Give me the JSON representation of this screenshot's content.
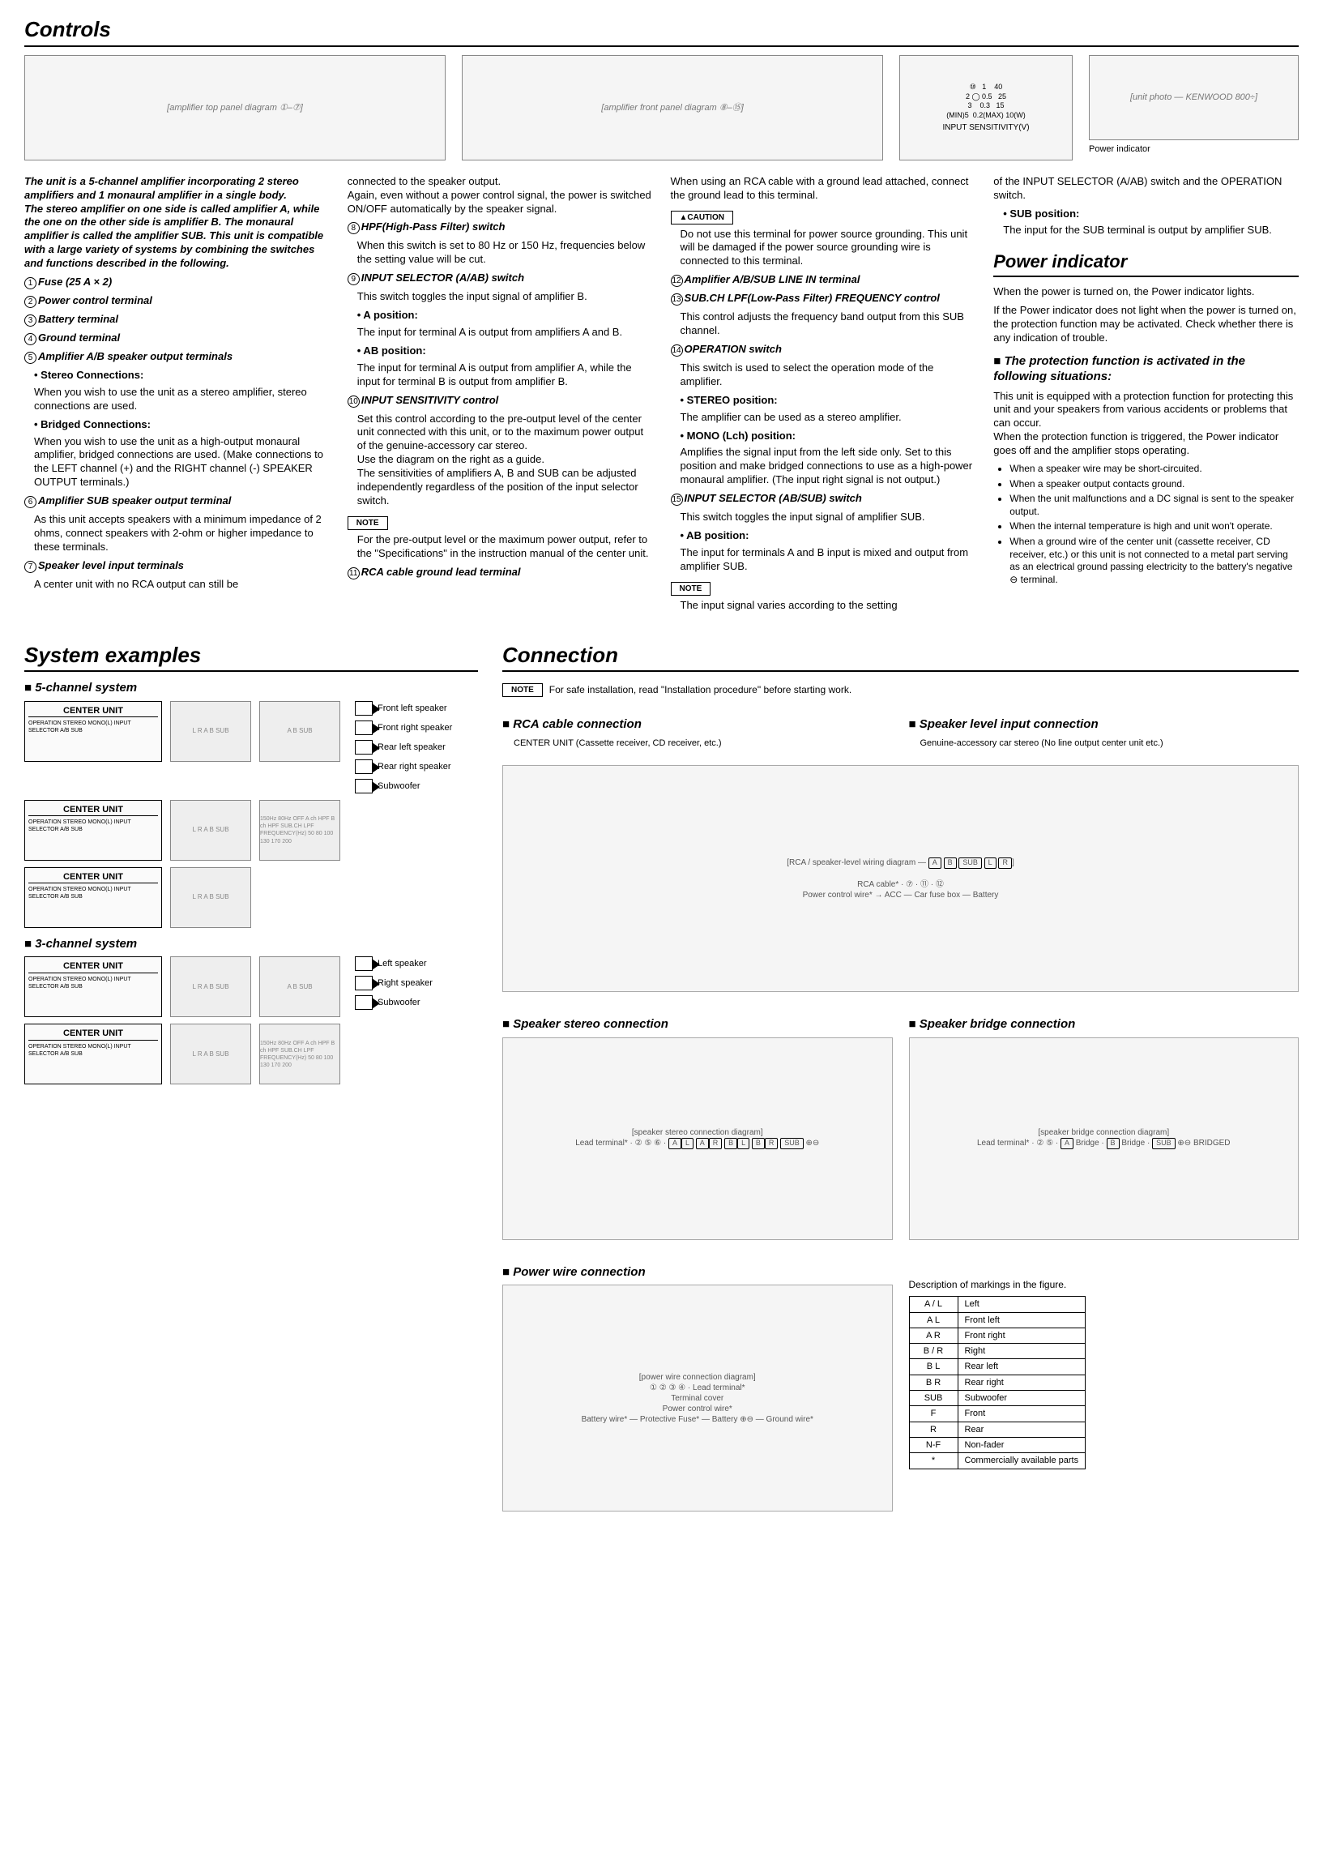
{
  "controls": {
    "title": "Controls",
    "intro": "The unit is a 5-channel amplifier incorporating 2 stereo amplifiers and 1 monaural amplifier in a single body.\nThe stereo amplifier on one side is called amplifier A, while the one on the other side is amplifier B. The monaural amplifier is called the amplifier SUB. This unit is compatible with a large variety of systems by combining the switches and functions described in the following.",
    "items": {
      "1": "Fuse (25 A × 2)",
      "2": "Power control terminal",
      "3": "Battery terminal",
      "4": "Ground terminal",
      "5": "Amplifier A/B speaker output terminals",
      "5_stereo_h": "• Stereo Connections:",
      "5_stereo": "When you wish to use the unit as a stereo amplifier, stereo connections are used.",
      "5_bridged_h": "• Bridged Connections:",
      "5_bridged": "When you wish to use the unit as a high-output monaural amplifier, bridged connections are used. (Make connections to the LEFT channel (+) and the RIGHT channel (-) SPEAKER OUTPUT terminals.)",
      "6": "Amplifier SUB speaker output terminal",
      "6_desc": "As this unit accepts speakers with a minimum impedance of 2 ohms, connect speakers with 2-ohm or higher impedance to these terminals.",
      "7": "Speaker level input terminals",
      "7_desc": "A center unit with no RCA output can still be",
      "7_cont": "connected to the speaker output.\nAgain, even without a power control signal, the power is switched ON/OFF automatically by the speaker signal.",
      "8": "HPF(High-Pass Filter) switch",
      "8_desc": "When this switch is set to 80 Hz or 150 Hz, frequencies below the setting value will be cut.",
      "9": "INPUT SELECTOR (A/AB) switch",
      "9_desc": "This switch toggles the input signal of amplifier B.",
      "9_a_h": "• A position:",
      "9_a": "The input for terminal A is output from amplifiers A and B.",
      "9_ab_h": "• AB position:",
      "9_ab": "The input for terminal A is output from amplifier A, while the input for terminal B is output from amplifier B.",
      "10": "INPUT SENSITIVITY control",
      "10_desc": "Set this control according to the pre-output level of the center unit connected with this unit, or to the maximum power output of the genuine-accessory car stereo.\nUse the diagram on the right as a guide.\nThe sensitivities of amplifiers A, B and SUB can be adjusted independently regardless of the position of the input selector switch.",
      "note_label": "NOTE",
      "10_note": "For the pre-output level or the maximum power output, refer to the \"Specifications\" in the instruction manual of the center unit.",
      "11": "RCA cable ground lead terminal",
      "11_desc": "When using an RCA cable with a ground lead attached, connect the ground lead to this terminal.",
      "caution_label": "▲CAUTION",
      "11_caution": "Do not use this terminal for power source grounding. This unit will be damaged if the power source grounding wire is connected to this terminal.",
      "12": "Amplifier A/B/SUB LINE IN terminal",
      "13": "SUB.CH LPF(Low-Pass Filter) FREQUENCY control",
      "13_desc": "This control adjusts the frequency band output from this SUB channel.",
      "14": "OPERATION switch",
      "14_desc": "This switch is used to select the operation mode of the amplifier.",
      "14_stereo_h": "• STEREO position:",
      "14_stereo": "The amplifier can be used as a stereo amplifier.",
      "14_mono_h": "• MONO (Lch) position:",
      "14_mono": "Amplifies the signal input from the left side only. Set to this position and make bridged connections to use as a high-power monaural amplifier. (The input right signal is not output.)",
      "15": "INPUT SELECTOR (AB/SUB) switch",
      "15_desc": "This switch toggles the input signal of amplifier SUB.",
      "15_ab_h": "• AB position:",
      "15_ab": "The input for terminals A and B input is mixed and output from amplifier SUB.",
      "15_note": "The input signal varies according to the setting",
      "15_cont": "of the INPUT SELECTOR (A/AB) switch and the OPERATION switch.",
      "15_sub_h": "• SUB position:",
      "15_sub": "The input for the SUB terminal is output by amplifier SUB."
    },
    "sensitivity_diagram": {
      "label": "INPUT SENSITIVITY(V)",
      "min": "(MIN)5",
      "max": "0.2(MAX)",
      "ticks_v": [
        "5",
        "2",
        "1",
        "0.5",
        "0.3",
        "0.2"
      ],
      "ticks_w": [
        "40",
        "25",
        "15",
        "10",
        "(W)"
      ]
    },
    "power_ind_caption": "Power indicator"
  },
  "power_indicator": {
    "title": "Power indicator",
    "p1": "When the power is turned on, the Power indicator lights.",
    "p2": "If the Power indicator does not light when the power is turned on, the protection function may be activated. Check whether there is any indication of trouble.",
    "protect_head": "The protection function is activated in the following situations:",
    "protect_desc": "This unit is equipped with a protection function for protecting this unit and your speakers from various accidents or problems that can occur.\nWhen the protection function is triggered, the Power indicator goes off and the amplifier stops operating.",
    "bullets": [
      "When a speaker wire may be short-circuited.",
      "When a speaker output contacts ground.",
      "When the unit malfunctions and a DC signal is sent to the speaker output.",
      "When the internal temperature is high and unit won't operate.",
      "When a ground wire of the center unit (cassette receiver, CD receiver, etc.) or this unit is not connected to a metal part serving as an electrical ground passing electricity to the battery's negative ⊖ terminal."
    ]
  },
  "system_examples": {
    "title": "System examples",
    "h5": "5-channel system",
    "h3": "3-channel system",
    "center_unit": "CENTER UNIT",
    "labels_small": "OPERATION STEREO MONO(L) INPUT SELECTOR A/B SUB",
    "speakers5": [
      "Front left speaker",
      "Front right speaker",
      "Rear left speaker",
      "Rear right speaker",
      "Subwoofer"
    ],
    "speakers3": [
      "Left speaker",
      "Right speaker",
      "Subwoofer"
    ],
    "chips": {
      "A": "A",
      "B": "B",
      "SUB": "SUB",
      "L": "L",
      "R": "R"
    },
    "hpf_labels": "150Hz 80Hz OFF  A ch HPF  B ch HPF  SUB.CH LPF FREQUENCY(Hz) 50 80 100 130 170 200"
  },
  "connection": {
    "title": "Connection",
    "note_text": "For safe installation, read \"Installation procedure\" before starting work.",
    "note_label": "NOTE",
    "rca_h": "RCA cable connection",
    "rca_sub": "CENTER UNIT (Cassette receiver, CD receiver, etc.)",
    "rca_cable": "RCA cable*",
    "spk_level_h": "Speaker level input connection",
    "spk_level_sub": "Genuine-accessory car stereo (No line output center unit etc.)",
    "pwr_ctrl": "Power control wire*",
    "acc": "ACC",
    "battery": "Battery",
    "car_fuse": "Car fuse box",
    "stereo_h": "Speaker stereo connection",
    "bridge_h": "Speaker bridge connection",
    "lead_term": "Lead terminal*",
    "bridge_lbl": "Bridge",
    "pwr_wire_h": "Power wire connection",
    "term_cover": "Terminal cover",
    "gnd_wire": "Ground wire*",
    "batt_wire": "Battery wire*",
    "prot_fuse": "Protective Fuse*",
    "desc_h": "Description of markings in the figure.",
    "markings": [
      [
        "A / L",
        "Left"
      ],
      [
        "A  L",
        "Front left"
      ],
      [
        "A  R",
        "Front right"
      ],
      [
        "B / R",
        "Right"
      ],
      [
        "B  L",
        "Rear left"
      ],
      [
        "B  R",
        "Rear right"
      ],
      [
        "SUB",
        "Subwoofer"
      ],
      [
        "F",
        "Front"
      ],
      [
        "R",
        "Rear"
      ],
      [
        "N-F",
        "Non-fader"
      ],
      [
        "*",
        "Commercially available parts"
      ]
    ]
  }
}
